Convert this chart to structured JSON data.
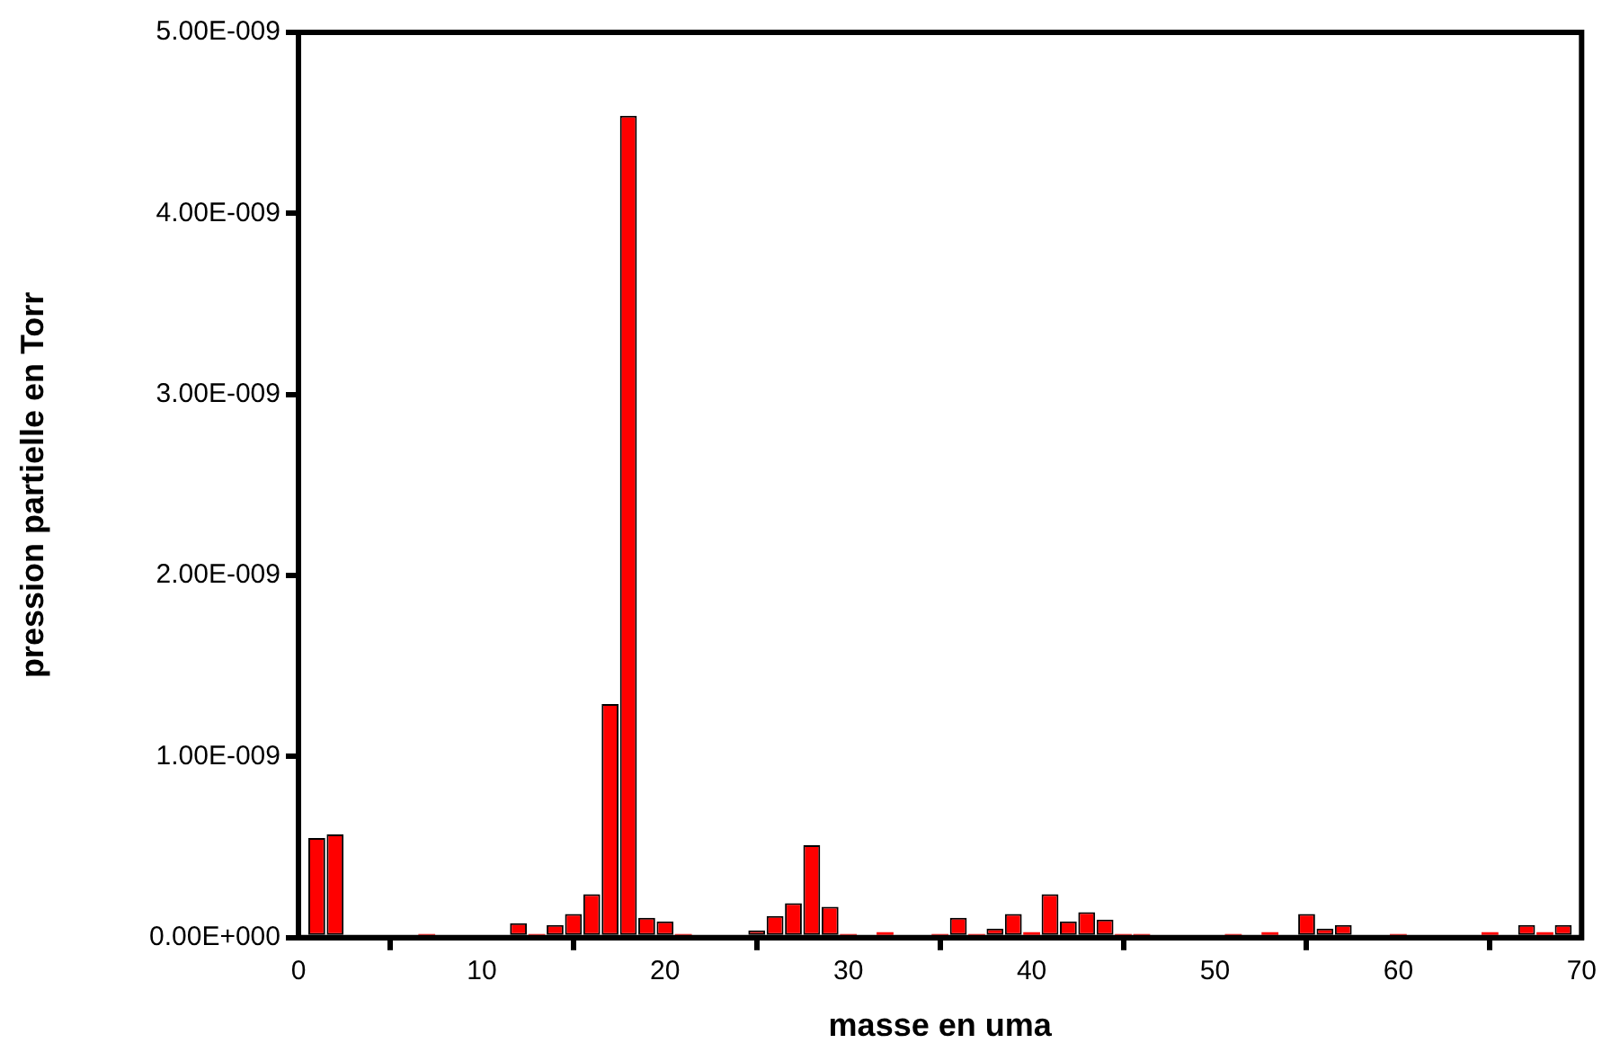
{
  "chart_data": {
    "type": "bar",
    "xlabel": "masse en uma",
    "ylabel": "pression partielle en Torr",
    "x": [
      1,
      2,
      7,
      12,
      13,
      14,
      15,
      16,
      17,
      18,
      19,
      20,
      21,
      25,
      26,
      27,
      28,
      29,
      30,
      32,
      35,
      36,
      37,
      38,
      39,
      40,
      41,
      42,
      43,
      44,
      45,
      46,
      51,
      53,
      55,
      56,
      57,
      60,
      65,
      67,
      68,
      69
    ],
    "values": [
      5.5e-10,
      5.7e-10,
      2e-11,
      8e-11,
      2e-11,
      7e-11,
      1.3e-10,
      2.4e-10,
      1.29e-09,
      4.54e-09,
      1.1e-10,
      9e-11,
      2e-11,
      4e-11,
      1.2e-10,
      1.9e-10,
      5.1e-10,
      1.7e-10,
      2e-11,
      3e-11,
      2e-11,
      1.1e-10,
      2e-11,
      5e-11,
      1.3e-10,
      3e-11,
      2.4e-10,
      9e-11,
      1.4e-10,
      1e-10,
      2e-11,
      2e-11,
      2e-11,
      3e-11,
      1.3e-10,
      5e-11,
      7e-11,
      2e-11,
      3e-11,
      7e-11,
      3e-11,
      7e-11
    ],
    "color": "#ff0000",
    "xlim": [
      0,
      70
    ],
    "xticks": [
      0,
      10,
      20,
      30,
      40,
      50,
      60,
      70
    ],
    "ylim": [
      0,
      5e-09
    ],
    "yticks": [
      {
        "value": 0,
        "label": "0.00E+000"
      },
      {
        "value": 1e-09,
        "label": "1.00E-009"
      },
      {
        "value": 2e-09,
        "label": "2.00E-009"
      },
      {
        "value": 3e-09,
        "label": "3.00E-009"
      },
      {
        "value": 4e-09,
        "label": "4.00E-009"
      },
      {
        "value": 5e-09,
        "label": "5.00E-009"
      }
    ],
    "grid": false,
    "legend": false
  }
}
